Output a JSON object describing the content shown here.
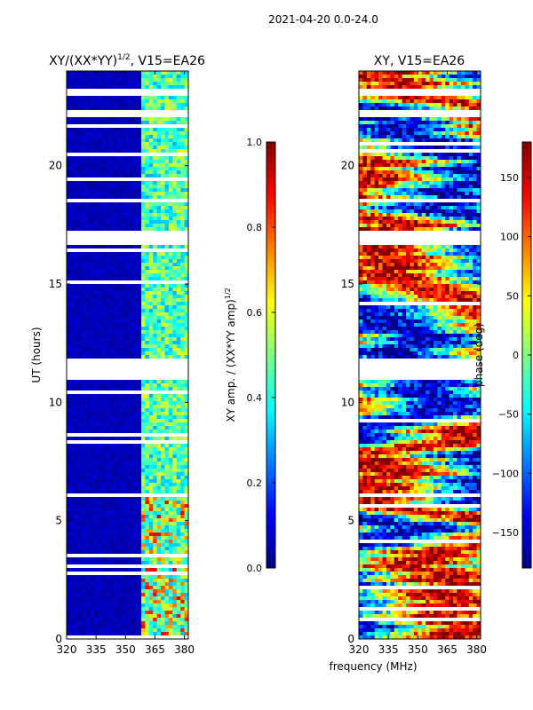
{
  "suptitle": "2021-04-20 0.0-24.0",
  "shared_xlabel": "frequency (MHz)",
  "colors": {
    "jet_stops": [
      "#00007f",
      "#0000ff",
      "#007fff",
      "#00ffff",
      "#7fff7f",
      "#ffff00",
      "#ff7f00",
      "#ff0000",
      "#7f0000"
    ],
    "gap": "#ffffff",
    "axis": "#000000"
  },
  "chart_data": [
    {
      "type": "heatmap",
      "title": "XY/(XX*YY)",
      "title_exponent": "1/2",
      "title_suffix": ", V15=EA26",
      "xlabel": "",
      "ylabel": "UT (hours)",
      "xlim": [
        320,
        382
      ],
      "ylim": [
        0,
        24
      ],
      "xticks": [
        "320",
        "335",
        "350",
        "365",
        "380"
      ],
      "xtick_values": [
        320,
        335,
        350,
        365,
        380
      ],
      "yticks": [
        "0",
        "5",
        "10",
        "15",
        "20"
      ],
      "ytick_values": [
        0,
        5,
        10,
        15,
        20
      ],
      "colorbar": {
        "label": "XY amp. / (XX*YY amp)",
        "label_exponent": "1/2",
        "range": [
          0,
          1
        ],
        "ticks": [
          "0.0",
          "0.2",
          "0.4",
          "0.6",
          "0.8",
          "1.0"
        ],
        "tick_values": [
          0,
          0.2,
          0.4,
          0.6,
          0.8,
          1.0
        ]
      },
      "value_description": "low amplitude (~0.05) below 359 MHz; 0.3-0.6 above 359 MHz with peaks near 0.8 around 2-6 UT",
      "gap_intervals_hours": [
        [
          16.7,
          17.2
        ],
        [
          11.0,
          11.9
        ],
        [
          23.0,
          23.2
        ],
        [
          22.1,
          22.3
        ],
        [
          6.0,
          6.1
        ],
        [
          8.2,
          8.3
        ]
      ]
    },
    {
      "type": "heatmap",
      "title": "XY",
      "title_suffix": ", V15=EA26",
      "xlabel": "frequency (MHz)",
      "ylabel": "",
      "xlim": [
        320,
        382
      ],
      "ylim": [
        0,
        24
      ],
      "xticks": [
        "320",
        "335",
        "350",
        "365",
        "380"
      ],
      "xtick_values": [
        320,
        335,
        350,
        365,
        380
      ],
      "yticks": [
        "0",
        "5",
        "10",
        "15",
        "20"
      ],
      "ytick_values": [
        0,
        5,
        10,
        15,
        20
      ],
      "colorbar": {
        "label": "phase (deg)",
        "range": [
          -180,
          180
        ],
        "ticks": [
          "−150",
          "−100",
          "−50",
          "0",
          "50",
          "100",
          "150"
        ],
        "tick_values": [
          -150,
          -100,
          -50,
          0,
          50,
          100,
          150
        ]
      },
      "value_description": "phase varies across full range -180 to 180 deg with horizontal banding",
      "gap_intervals_hours": [
        [
          16.7,
          17.2
        ],
        [
          11.0,
          11.9
        ],
        [
          23.0,
          23.2
        ],
        [
          22.1,
          22.3
        ],
        [
          6.0,
          6.1
        ],
        [
          8.2,
          8.3
        ]
      ]
    }
  ]
}
